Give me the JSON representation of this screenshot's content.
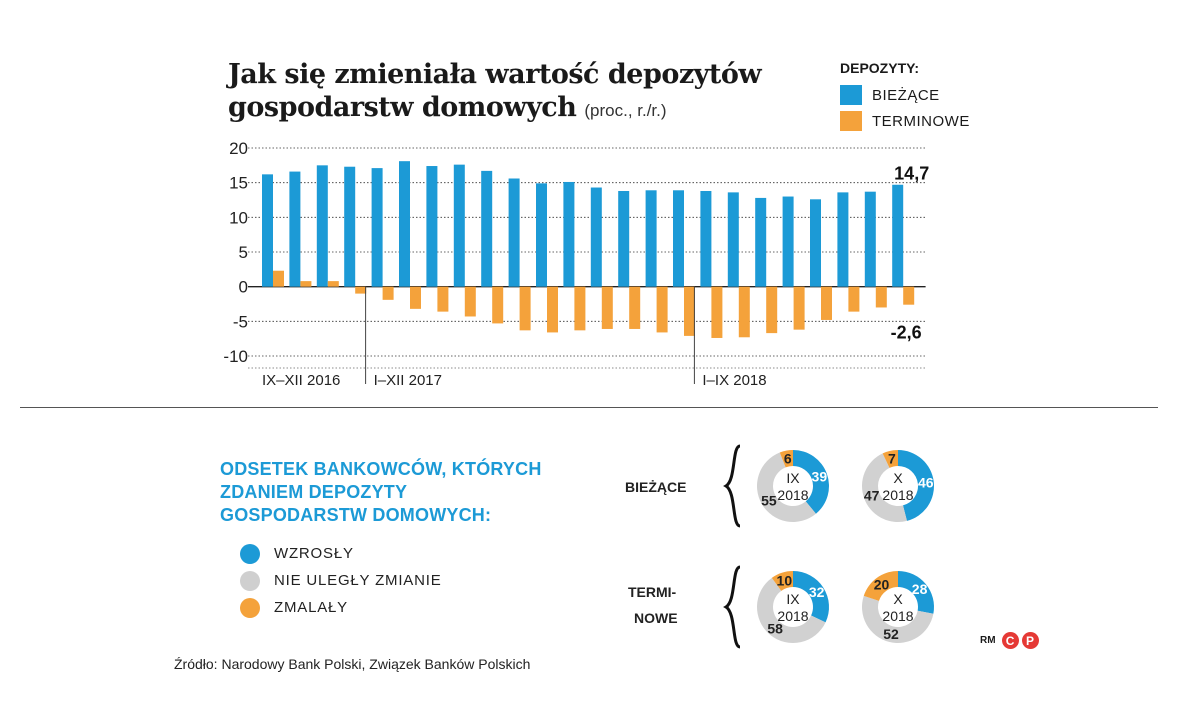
{
  "title": {
    "line1": "Jak się zmieniała wartość depozytów",
    "line2": "gospodarstw domowych",
    "unit": "(proc., r./r.)"
  },
  "legend_top": {
    "title": "DEPOZYTY:",
    "items": [
      "BIEŻĄCE",
      "TERMINOWE"
    ]
  },
  "colors": {
    "blue": "#1c9ad6",
    "orange": "#f4a23b",
    "gray": "#d1d1d1"
  },
  "chart_data": [
    {
      "type": "bar",
      "title": "Jak się zmieniała wartość depozytów gospodarstw domowych (proc., r./r.)",
      "ylim": [
        -10,
        20
      ],
      "yticks": [
        20,
        15,
        10,
        5,
        0,
        -5,
        -10
      ],
      "period_labels": [
        "IX–XII 2016",
        "I–XII 2017",
        "I–IX 2018"
      ],
      "series": [
        {
          "name": "BIEŻĄCE",
          "values": [
            16.2,
            16.6,
            17.5,
            17.3,
            17.1,
            18.1,
            17.4,
            17.6,
            16.7,
            15.6,
            14.9,
            15.1,
            14.3,
            13.8,
            13.9,
            13.9,
            13.8,
            13.6,
            12.8,
            13.0,
            12.6,
            13.6,
            13.7,
            14.7
          ]
        },
        {
          "name": "TERMINOWE",
          "values": [
            2.3,
            0.8,
            0.8,
            -1.0,
            -1.9,
            -3.2,
            -3.6,
            -4.3,
            -5.3,
            -6.3,
            -6.6,
            -6.3,
            -6.1,
            -6.1,
            -6.6,
            -7.1,
            -7.4,
            -7.3,
            -6.7,
            -6.2,
            -4.8,
            -3.6,
            -3.0,
            -2.6
          ]
        }
      ],
      "annotations": [
        "14,7",
        "-2,6"
      ]
    },
    {
      "type": "pie",
      "title": "ODSETEK BANKOWCÓW, KTÓRYCH ZDANIEM DEPOZYTY GOSPODARSTW DOMOWYCH:",
      "legend": [
        "WZROSŁY",
        "NIE ULEGŁY ZMIANIE",
        "ZMALAŁY"
      ],
      "groups": [
        {
          "label": "BIEŻĄCE",
          "charts": [
            {
              "period_line1": "IX",
              "period_line2": "2018",
              "values": [
                39,
                55,
                6
              ]
            },
            {
              "period_line1": "X",
              "period_line2": "2018",
              "values": [
                46,
                47,
                7
              ]
            }
          ]
        },
        {
          "label": "TERMI-NOWE",
          "label_line1": "TERMI-",
          "label_line2": "NOWE",
          "charts": [
            {
              "period_line1": "IX",
              "period_line2": "2018",
              "values": [
                32,
                58,
                10
              ]
            },
            {
              "period_line1": "X",
              "period_line2": "2018",
              "values": [
                28,
                52,
                20
              ]
            }
          ]
        }
      ]
    }
  ],
  "source": "Źródło: Narodowy Bank Polski, Związek Banków Polskich",
  "logo": {
    "text": "RM",
    "c1": "C",
    "c2": "P"
  }
}
